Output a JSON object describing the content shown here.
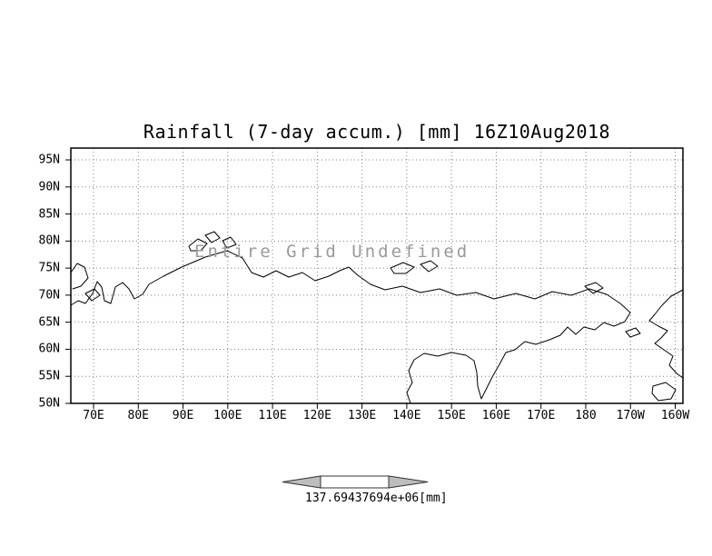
{
  "title": "Rainfall (7-day accum.) [mm] 16Z10Aug2018",
  "plot": {
    "overlay_message": "Entire Grid Undefined"
  },
  "axes": {
    "y_ticks": [
      "95N",
      "90N",
      "85N",
      "80N",
      "75N",
      "70N",
      "65N",
      "60N",
      "55N",
      "50N"
    ],
    "x_ticks": [
      "70E",
      "80E",
      "90E",
      "100E",
      "110E",
      "120E",
      "130E",
      "140E",
      "150E",
      "160E",
      "170E",
      "180",
      "170W",
      "160W"
    ]
  },
  "colorbar": {
    "min_label": "137.694",
    "max_label": "37694e+06",
    "unit": "[mm]"
  },
  "colors": {
    "coastline": "#000000",
    "gridline": "#808080",
    "overlay_text": "#9a9a9a",
    "colorbar_arrow": "#bdbdbd"
  },
  "chart_data": {
    "type": "heatmap",
    "title": "Rainfall (7-day accum.) [mm] 16Z10Aug2018",
    "variable": "Rainfall (7-day accum.)",
    "units": "mm",
    "time": "16Z10Aug2018",
    "x_axis_ticks": [
      "70E",
      "80E",
      "90E",
      "100E",
      "110E",
      "120E",
      "130E",
      "140E",
      "150E",
      "160E",
      "170E",
      "180",
      "170W",
      "160W"
    ],
    "y_axis_ticks": [
      "95N",
      "90N",
      "85N",
      "80N",
      "75N",
      "70N",
      "65N",
      "60N",
      "55N",
      "50N"
    ],
    "x_range": [
      "70E",
      "160W"
    ],
    "y_range": [
      "50N",
      "95N"
    ],
    "grid": "dotted",
    "values": null,
    "status": "Entire Grid Undefined",
    "colorbar_labels": [
      "137.694",
      "37694e+06",
      "[mm]"
    ]
  }
}
